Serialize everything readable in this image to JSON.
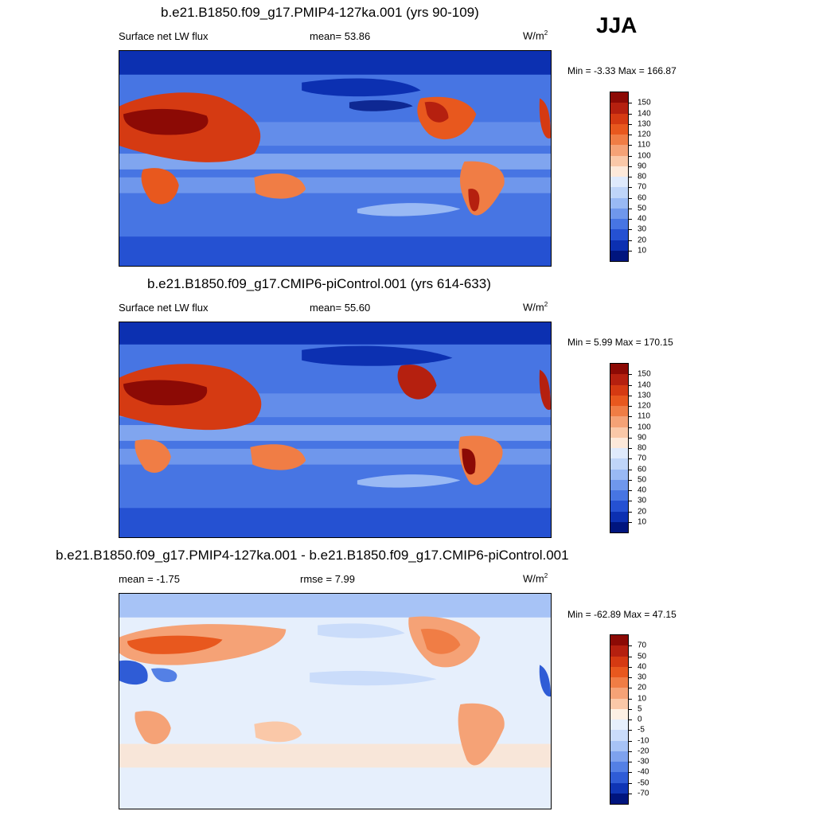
{
  "season": "JJA",
  "panels": [
    {
      "title": "b.e21.B1850.f09_g17.PMIP4-127ka.001 (yrs 90-109)",
      "left": "Surface net LW flux",
      "center": "mean=  53.86",
      "unit": "W/m",
      "unit_sup": "2",
      "minmax": "Min =  -3.33 Max = 166.87",
      "colorbar": {
        "labels": [
          "150",
          "140",
          "130",
          "120",
          "110",
          "100",
          "90",
          "80",
          "70",
          "60",
          "50",
          "40",
          "30",
          "20",
          "10"
        ],
        "colors": [
          "#8c0a05",
          "#b5200f",
          "#d53a12",
          "#e8581e",
          "#f07d45",
          "#f5a276",
          "#fac8a8",
          "#fde9da",
          "#dfeafc",
          "#bfd5f9",
          "#99b9f4",
          "#6f97ec",
          "#4775e3",
          "#2551d2",
          "#0c30b1",
          "#00157e"
        ]
      }
    },
    {
      "title": "b.e21.B1850.f09_g17.CMIP6-piControl.001 (yrs 614-633)",
      "left": "Surface net LW flux",
      "center": "mean=  55.60",
      "unit": "W/m",
      "unit_sup": "2",
      "minmax": "Min =   5.99 Max = 170.15",
      "colorbar": {
        "labels": [
          "150",
          "140",
          "130",
          "120",
          "110",
          "100",
          "90",
          "80",
          "70",
          "60",
          "50",
          "40",
          "30",
          "20",
          "10"
        ],
        "colors": [
          "#8c0a05",
          "#b5200f",
          "#d53a12",
          "#e8581e",
          "#f07d45",
          "#f5a276",
          "#fac8a8",
          "#fde9da",
          "#dfeafc",
          "#bfd5f9",
          "#99b9f4",
          "#6f97ec",
          "#4775e3",
          "#2551d2",
          "#0c30b1",
          "#00157e"
        ]
      }
    },
    {
      "title": "b.e21.B1850.f09_g17.PMIP4-127ka.001 - b.e21.B1850.f09_g17.CMIP6-piControl.001",
      "left": "mean =  -1.75",
      "center": "rmse =   7.99",
      "unit": "W/m",
      "unit_sup": "2",
      "minmax": "Min = -62.89 Max =  47.15",
      "colorbar": {
        "labels": [
          "70",
          "50",
          "40",
          "30",
          "20",
          "10",
          "5",
          "0",
          "-5",
          "-10",
          "-20",
          "-30",
          "-40",
          "-50",
          "-70"
        ],
        "colors": [
          "#8c0a05",
          "#b5200f",
          "#d53a12",
          "#e8581e",
          "#f07d45",
          "#f5a276",
          "#fac8a8",
          "#fdf0e4",
          "#e6effc",
          "#cadcfa",
          "#a7c3f6",
          "#7ea2ee",
          "#5480e5",
          "#2f5cd6",
          "#0f35b5",
          "#00157e"
        ]
      }
    }
  ]
}
